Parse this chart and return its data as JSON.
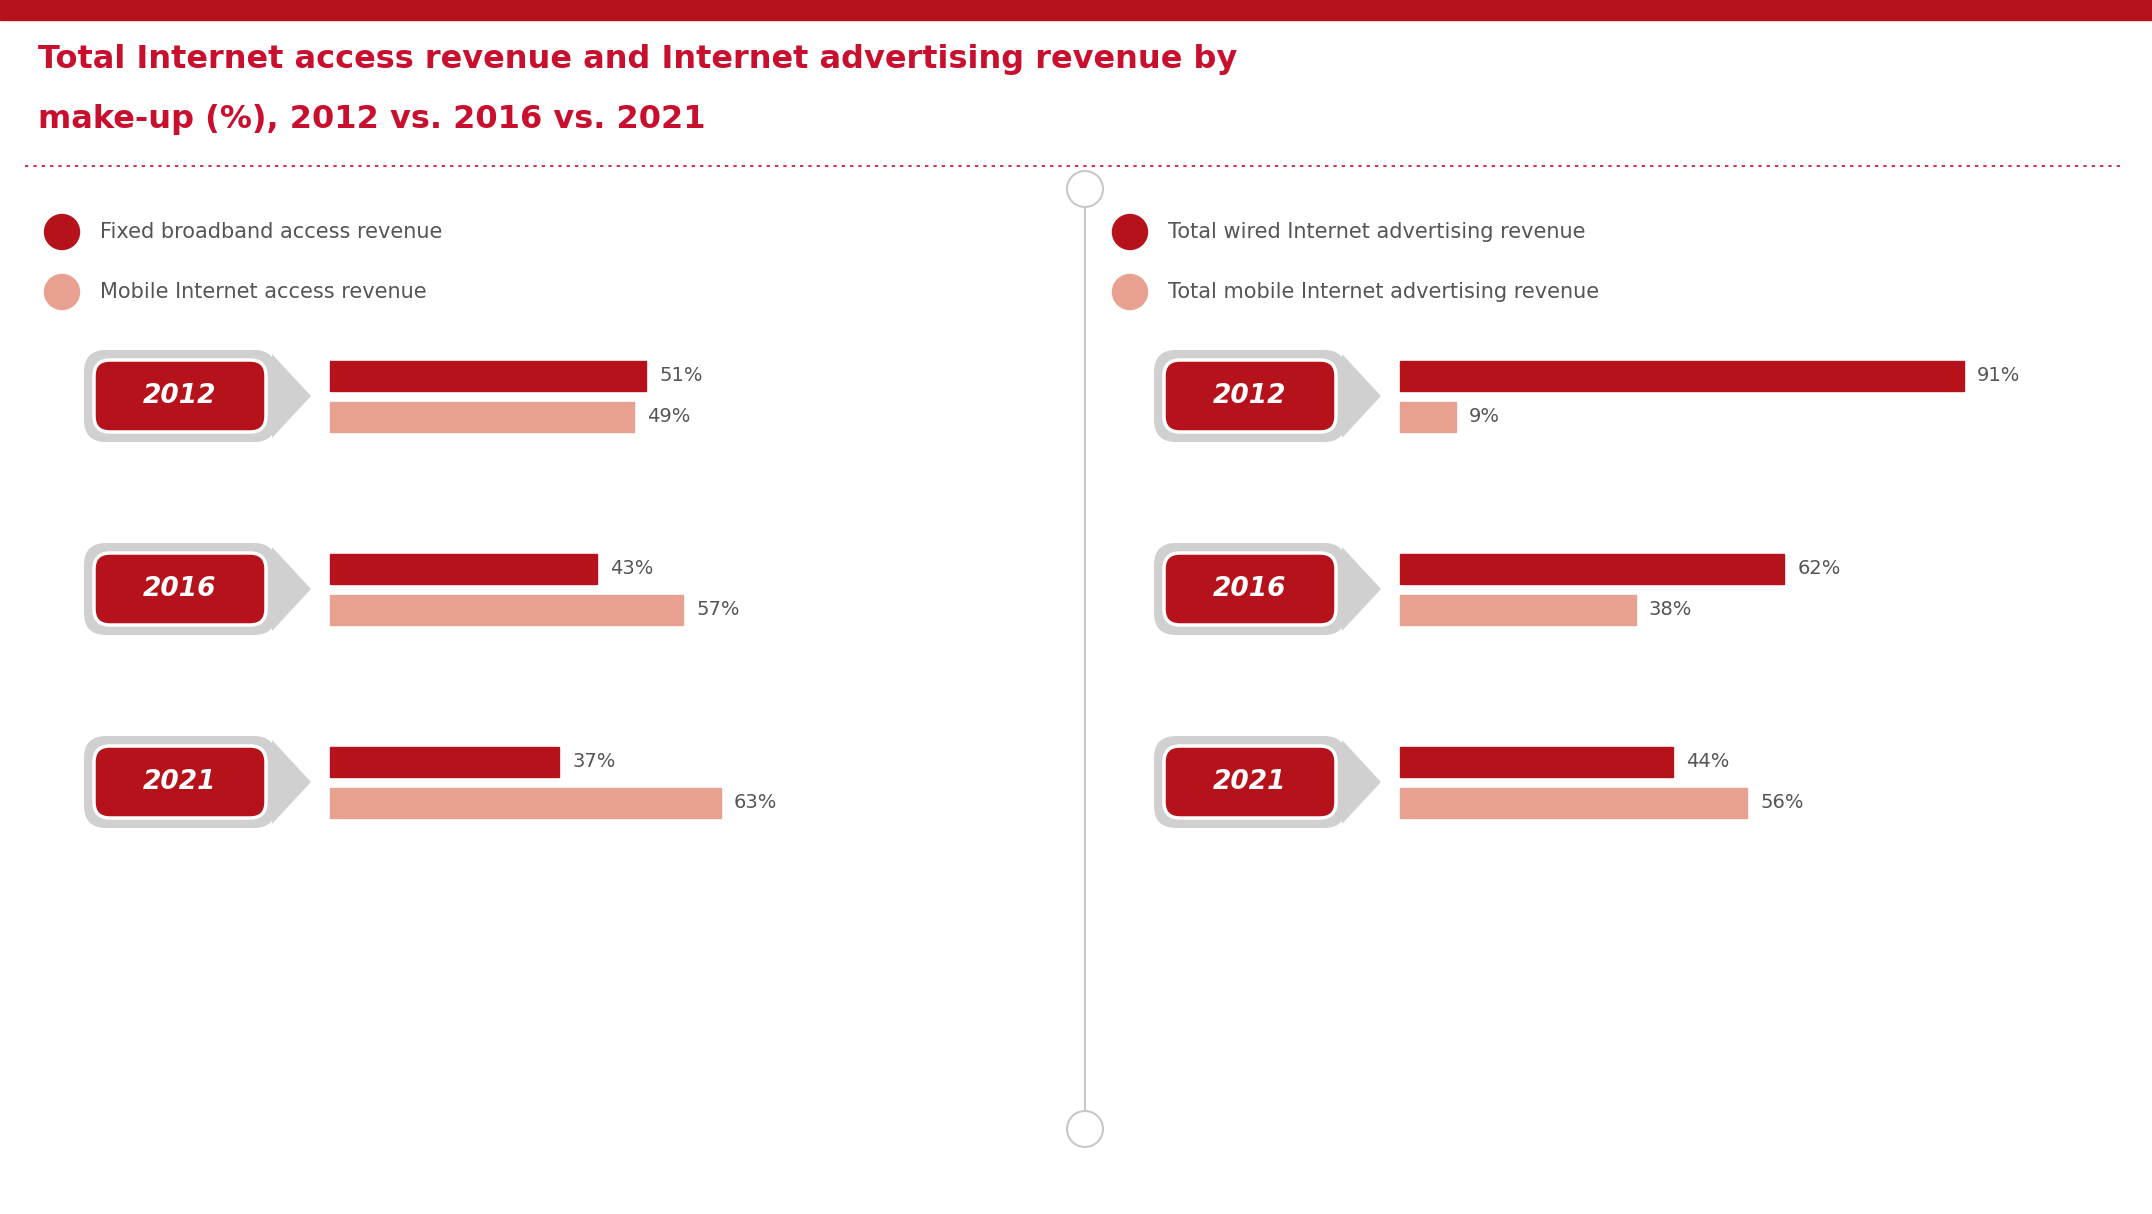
{
  "title_line1": "Total Internet access revenue and Internet advertising revenue by",
  "title_line2": "make-up (%), 2012 vs. 2016 vs. 2021",
  "title_color": "#C8102E",
  "background_color": "#FFFFFF",
  "top_bar_color": "#B5121B",
  "legend_left": [
    {
      "label": "Fixed broadband access revenue",
      "color": "#B5121B"
    },
    {
      "label": "Mobile Internet access revenue",
      "color": "#E8A090"
    }
  ],
  "legend_right": [
    {
      "label": "Total wired Internet advertising revenue",
      "color": "#B5121B"
    },
    {
      "label": "Total mobile Internet advertising revenue",
      "color": "#E8A090"
    }
  ],
  "left_data": {
    "years": [
      "2012",
      "2016",
      "2021"
    ],
    "dark_values": [
      51,
      43,
      37
    ],
    "light_values": [
      49,
      57,
      63
    ],
    "dark_labels": [
      "51%",
      "43%",
      "37%"
    ],
    "light_labels": [
      "49%",
      "57%",
      "63%"
    ]
  },
  "right_data": {
    "years": [
      "2012",
      "2016",
      "2021"
    ],
    "dark_values": [
      91,
      62,
      44
    ],
    "light_values": [
      9,
      38,
      56
    ],
    "dark_labels": [
      "91%",
      "62%",
      "44%"
    ],
    "light_labels": [
      "9%",
      "38%",
      "56%"
    ]
  },
  "dark_bar_color": "#B5121B",
  "light_bar_color": "#E8A090",
  "year_label_color": "#FFFFFF",
  "year_box_color": "#B5121B",
  "badge_outer_color": "#D0D0D0",
  "badge_inner_outline": "#FFFFFF",
  "divider_color": "#C8C8C8",
  "text_color": "#555555",
  "pct_label_color": "#555555",
  "legend_text_color": "#555555"
}
